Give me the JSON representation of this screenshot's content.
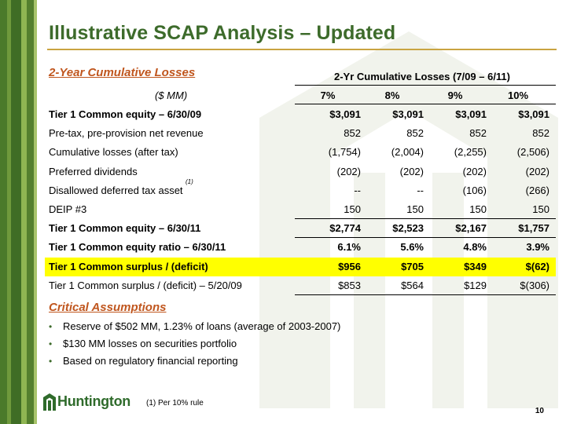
{
  "title": "Illustrative SCAP Analysis – Updated",
  "section1_heading": "2-Year Cumulative Losses",
  "table": {
    "group_header": "2-Yr Cumulative Losses (7/09 – 6/11)",
    "units_label": "($ MM)",
    "columns": [
      "7%",
      "8%",
      "9%",
      "10%"
    ],
    "rows": [
      {
        "label": "Tier 1 Common equity – 6/30/09",
        "values": [
          "$3,091",
          "$3,091",
          "$3,091",
          "$3,091"
        ],
        "bold": true
      },
      {
        "label": "Pre-tax, pre-provision net revenue",
        "values": [
          "852",
          "852",
          "852",
          "852"
        ]
      },
      {
        "label": "Cumulative losses (after tax)",
        "values": [
          "(1,754)",
          "(2,004)",
          "(2,255)",
          "(2,506)"
        ]
      },
      {
        "label": "Preferred dividends",
        "values": [
          "(202)",
          "(202)",
          "(202)",
          "(202)"
        ]
      },
      {
        "label": "Disallowed deferred tax asset",
        "footnote_ref": "(1)",
        "values": [
          "--",
          "--",
          "(106)",
          "(266)"
        ]
      },
      {
        "label": "DEIP #3",
        "values": [
          "150",
          "150",
          "150",
          "150"
        ]
      },
      {
        "label": "Tier 1 Common equity – 6/30/11",
        "values": [
          "$2,774",
          "$2,523",
          "$2,167",
          "$1,757"
        ],
        "bold": true
      },
      {
        "label": "Tier 1 Common equity ratio – 6/30/11",
        "values": [
          "6.1%",
          "5.6%",
          "4.8%",
          "3.9%"
        ],
        "bold": true
      },
      {
        "label": "Tier 1 Common surplus / (deficit)",
        "values": [
          "$956",
          "$705",
          "$349",
          "$(62)"
        ],
        "bold": true,
        "highlight": true
      },
      {
        "label": "Tier 1 Common surplus / (deficit) – 5/20/09",
        "values": [
          "$853",
          "$564",
          "$129",
          "$(306)"
        ]
      }
    ]
  },
  "section2_heading": "Critical Assumptions",
  "bullets": [
    "Reserve of $502 MM, 1.23% of loans (average of 2003-2007)",
    "$130 MM losses on securities portfolio",
    "Based on regulatory financial reporting"
  ],
  "logo_text": "Huntington",
  "footnote": "(1)  Per 10% rule",
  "page_number": "10",
  "colors": {
    "title_green": "#3d6b2b",
    "heading_orange": "#c0561e",
    "highlight_yellow": "#ffff00",
    "rule_gold": "#c9a441"
  }
}
